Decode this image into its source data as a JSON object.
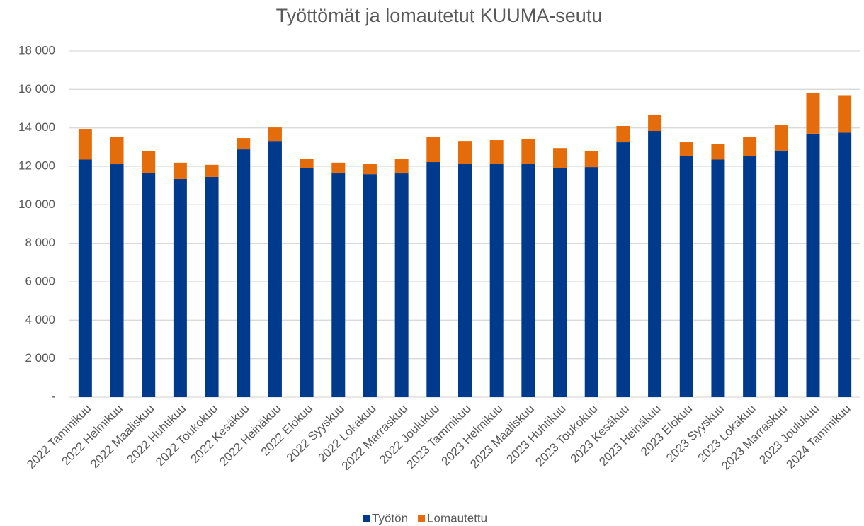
{
  "chart_data": {
    "type": "stacked_bar",
    "title": "Työttömät ja lomautetut KUUMA-seutu",
    "categories": [
      "2022 Tammikuu",
      "2022 Helmikuu",
      "2022 Maaliskuu",
      "2022 Huhtikuu",
      "2022 Toukokuu",
      "2022 Kesäkuu",
      "2022 Heinäkuu",
      "2022 Elokuu",
      "2022 Syyskuu",
      "2022 Lokakuu",
      "2022 Marraskuu",
      "2022 Joulukuu",
      "2023 Tammikuu",
      "2023 Helmikuu",
      "2023 Maaliskuu",
      "2023 Huhtikuu",
      "2023 Toukokuu",
      "2023 Kesäkuu",
      "2023 Heinäkuu",
      "2023 Elokuu",
      "2023 Syyskuu",
      "2023 Lokakuu",
      "2023 Marraskuu",
      "2023 Joulukuu",
      "2024 Tammikuu"
    ],
    "series": [
      {
        "name": "Työtön",
        "color": "#003a8c",
        "values": [
          12350,
          12110,
          11670,
          11340,
          11450,
          12880,
          13320,
          11920,
          11670,
          11590,
          11630,
          12220,
          12110,
          12110,
          12110,
          11920,
          11960,
          13250,
          13840,
          12550,
          12350,
          12550,
          12820,
          13700,
          13750
        ]
      },
      {
        "name": "Lomautettu",
        "color": "#e46c0a",
        "values": [
          1600,
          1430,
          1140,
          850,
          630,
          590,
          700,
          480,
          520,
          520,
          740,
          1290,
          1210,
          1250,
          1320,
          1030,
          850,
          850,
          850,
          700,
          800,
          980,
          1350,
          2130,
          1950
        ]
      }
    ],
    "ylim": [
      0,
      18000
    ],
    "yticks": [
      {
        "value": 0,
        "label": "-"
      },
      {
        "value": 2000,
        "label": "2 000"
      },
      {
        "value": 4000,
        "label": "4 000"
      },
      {
        "value": 6000,
        "label": "6 000"
      },
      {
        "value": 8000,
        "label": "8 000"
      },
      {
        "value": 10000,
        "label": "10 000"
      },
      {
        "value": 12000,
        "label": "12 000"
      },
      {
        "value": 14000,
        "label": "14 000"
      },
      {
        "value": 16000,
        "label": "16 000"
      },
      {
        "value": 18000,
        "label": "18 000"
      }
    ],
    "grid": true
  }
}
